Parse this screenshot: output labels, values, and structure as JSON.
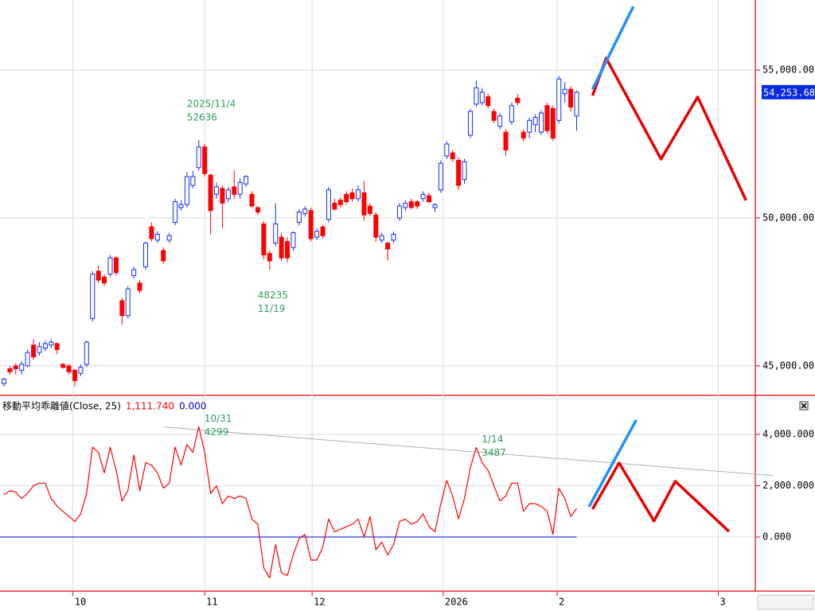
{
  "chart_data": [
    {
      "type": "candlestick",
      "x": [
        0,
        1,
        2,
        3,
        4,
        5,
        6,
        7,
        8,
        9,
        10,
        11,
        12,
        13,
        14,
        15,
        16,
        17,
        18,
        19,
        20,
        21,
        22,
        23,
        24,
        25,
        26,
        27,
        28,
        29,
        30,
        31,
        32,
        33,
        34,
        35,
        36,
        37,
        38,
        39,
        40,
        41,
        42,
        43,
        44,
        45,
        46,
        47,
        48,
        49,
        50,
        51,
        52,
        53,
        54,
        55,
        56,
        57,
        58,
        59,
        60,
        61,
        62,
        63,
        64,
        65,
        66,
        67,
        68,
        69,
        70,
        71,
        72,
        73,
        74,
        75,
        76,
        77,
        78,
        79,
        80,
        81,
        82,
        83,
        84,
        85,
        86,
        87,
        88,
        89,
        90,
        91,
        92,
        93,
        94,
        95,
        96,
        97
      ],
      "open": [
        44400,
        44900,
        45000,
        44850,
        45000,
        45700,
        45450,
        45600,
        45700,
        45750,
        45050,
        45000,
        44850,
        44750,
        45050,
        46600,
        48200,
        48000,
        48100,
        48650,
        47200,
        46700,
        48050,
        47800,
        48350,
        49700,
        49250,
        48900,
        49250,
        49850,
        50350,
        50450,
        51100,
        51700,
        52400,
        51450,
        50800,
        51000,
        50650,
        51050,
        50800,
        51150,
        50800,
        50350,
        49800,
        48800,
        49150,
        49350,
        49200,
        49000,
        49850,
        50150,
        50250,
        49350,
        49700,
        49950,
        50500,
        50600,
        50800,
        50850,
        50650,
        50850,
        50400,
        50100,
        49250,
        49150,
        49250,
        50000,
        50350,
        50550,
        50550,
        50650,
        50750,
        50350,
        50950,
        52100,
        52200,
        51950,
        51300,
        52800,
        53850,
        53900,
        54100,
        53600,
        53100,
        52900,
        53250,
        54050,
        52900,
        52900,
        53150,
        52900,
        53800,
        53700,
        53300,
        54200,
        54350,
        53450
      ],
      "high": [
        44600,
        45000,
        45100,
        45150,
        45550,
        45900,
        45800,
        45850,
        45900,
        45800,
        45100,
        45050,
        44900,
        45050,
        45850,
        48200,
        48400,
        48100,
        48750,
        48700,
        47300,
        47700,
        48350,
        47900,
        49200,
        49850,
        49550,
        49000,
        49500,
        50650,
        50600,
        51550,
        51600,
        52636,
        52500,
        51500,
        51200,
        51100,
        51050,
        51600,
        51350,
        51450,
        50900,
        50400,
        49900,
        48900,
        50500,
        49500,
        49350,
        49550,
        50300,
        50400,
        50350,
        49650,
        49750,
        51050,
        50650,
        50700,
        50900,
        51000,
        51100,
        51250,
        50500,
        50200,
        49500,
        49200,
        49550,
        50500,
        50600,
        50650,
        50600,
        50900,
        50850,
        50500,
        51950,
        52600,
        52300,
        52050,
        52000,
        53700,
        54650,
        54400,
        54200,
        53700,
        53550,
        53000,
        53900,
        54200,
        53000,
        53400,
        53500,
        53650,
        53900,
        53800,
        54800,
        54600,
        54450,
        54300
      ],
      "low": [
        44300,
        44700,
        44700,
        44700,
        44950,
        45200,
        45350,
        45500,
        45600,
        45400,
        44900,
        44700,
        44300,
        44650,
        44950,
        46500,
        47800,
        47700,
        48000,
        48050,
        46400,
        46600,
        47950,
        47450,
        48250,
        49200,
        49150,
        48450,
        49150,
        49750,
        50250,
        50350,
        51000,
        51600,
        51400,
        49450,
        50650,
        49650,
        50550,
        50650,
        50650,
        51050,
        50350,
        50100,
        48600,
        48235,
        49050,
        48550,
        48500,
        48900,
        49750,
        50050,
        49200,
        49250,
        49300,
        49850,
        50250,
        50350,
        50450,
        50550,
        50550,
        49900,
        50050,
        49200,
        49150,
        48550,
        49150,
        49900,
        50250,
        50300,
        50300,
        50550,
        50500,
        50200,
        50850,
        52000,
        51900,
        50950,
        51150,
        52700,
        53750,
        53800,
        53700,
        53200,
        53000,
        52100,
        53150,
        53800,
        52600,
        52700,
        52900,
        52800,
        52850,
        52600,
        53200,
        53900,
        53600,
        52950
      ],
      "close": [
        44550,
        44800,
        44900,
        45050,
        45450,
        45300,
        45650,
        45750,
        45800,
        45550,
        44950,
        44800,
        44500,
        44950,
        45800,
        48100,
        47900,
        47800,
        48650,
        48150,
        46700,
        47600,
        48250,
        47550,
        49150,
        49300,
        49450,
        48550,
        49400,
        50550,
        50450,
        51400,
        51400,
        52400,
        51500,
        50250,
        51050,
        50500,
        50950,
        50800,
        51200,
        51400,
        50400,
        50200,
        48750,
        48550,
        49800,
        48650,
        48650,
        49500,
        50200,
        50300,
        49300,
        49550,
        49400,
        50950,
        50300,
        50450,
        50550,
        50650,
        50950,
        50100,
        50150,
        49350,
        49400,
        48950,
        49450,
        50400,
        50500,
        50350,
        50400,
        50800,
        50550,
        50450,
        51850,
        52500,
        52000,
        51100,
        51900,
        53600,
        54400,
        54250,
        53800,
        53300,
        53450,
        52300,
        53800,
        53900,
        52700,
        53300,
        53400,
        53550,
        52950,
        52700,
        54700,
        54350,
        53750,
        54253.68
      ],
      "up_color": "#1030f0",
      "down_color": "#ff0000",
      "xlim": [
        -0.67,
        127.4
      ],
      "ylim": [
        44000,
        57370
      ],
      "yticks": [
        {
          "value": 45000,
          "label": "45,000.00"
        },
        {
          "value": 50000,
          "label": "50,000.00"
        },
        {
          "value": 55000,
          "label": "55,000.00"
        }
      ],
      "grid": true,
      "last_price": {
        "value": 54253.68,
        "label": "54,253.68",
        "color": "#0a2ae0"
      },
      "annotations": [
        {
          "label": "2025/11/4",
          "value": 52636,
          "x": 33,
          "position": "above"
        },
        {
          "label": "11/19",
          "value": 48235,
          "x": 45,
          "position": "below"
        }
      ],
      "annotation_color": "#2e9e5a",
      "forecast": [
        {
          "color": "#e80000",
          "x": [
            99.7,
            102,
            111.3,
            117.5,
            125.7
          ],
          "values": [
            54140,
            55400,
            51990,
            54090,
            50590
          ]
        },
        {
          "color": "#1e8fff",
          "x": [
            99.7,
            106.6
          ],
          "values": [
            54355,
            57150
          ]
        }
      ]
    },
    {
      "type": "line",
      "title": "移動平均乖離値(Close, 25)",
      "x": [
        0,
        1,
        2,
        3,
        4,
        5,
        6,
        7,
        8,
        9,
        10,
        11,
        12,
        13,
        14,
        15,
        16,
        17,
        18,
        19,
        20,
        21,
        22,
        23,
        24,
        25,
        26,
        27,
        28,
        29,
        30,
        31,
        32,
        33,
        34,
        35,
        36,
        37,
        38,
        39,
        40,
        41,
        42,
        43,
        44,
        45,
        46,
        47,
        48,
        49,
        50,
        51,
        52,
        53,
        54,
        55,
        56,
        57,
        58,
        59,
        60,
        61,
        62,
        63,
        64,
        65,
        66,
        67,
        68,
        69,
        70,
        71,
        72,
        73,
        74,
        75,
        76,
        77,
        78,
        79,
        80,
        81,
        82,
        83,
        84,
        85,
        86,
        87,
        88,
        89,
        90,
        91,
        92,
        93,
        94,
        95,
        96,
        97
      ],
      "series": [
        {
          "color": "#ff0000",
          "values": [
            1650,
            1800,
            1750,
            1500,
            1700,
            2000,
            2100,
            2100,
            1500,
            1200,
            1000,
            800,
            600,
            900,
            1700,
            3500,
            3300,
            2500,
            3500,
            2600,
            1400,
            1800,
            3200,
            1800,
            2900,
            2800,
            2500,
            1900,
            2100,
            3500,
            2800,
            3600,
            3300,
            4299,
            3300,
            1700,
            2000,
            1300,
            1600,
            1500,
            1600,
            1500,
            700,
            500,
            -1200,
            -1600,
            -300,
            -1400,
            -1500,
            -700,
            -50,
            100,
            -900,
            -900,
            -400,
            700,
            200,
            300,
            400,
            500,
            700,
            0,
            800,
            -500,
            -200,
            -700,
            -300,
            600,
            700,
            500,
            600,
            900,
            400,
            200,
            1300,
            2200,
            1600,
            700,
            1500,
            2700,
            3487,
            2900,
            2600,
            2000,
            1400,
            1600,
            2100,
            2100,
            1000,
            1300,
            1300,
            1200,
            1000,
            100,
            1900,
            1500,
            800,
            1111.74
          ]
        }
      ],
      "header_values": [
        {
          "value": 1111.74,
          "label": "1,111.740",
          "color": "#ff0000"
        },
        {
          "value": 0,
          "label": "0.000",
          "color": "#0000cc"
        }
      ],
      "annotations": [
        {
          "label": "10/31",
          "value": 4299,
          "x": 33
        },
        {
          "label": "1/14",
          "value": 3487,
          "x": 80
        }
      ],
      "annotation_color": "#2e9e5a",
      "trendline": {
        "color": "#b0b0b0",
        "x": [
          27.2,
          130.3
        ],
        "values": [
          4286,
          2391
        ]
      },
      "forecast": [
        {
          "color": "#e80000",
          "x": [
            99.7,
            104.2,
            110.1,
            113.7,
            122.8
          ],
          "values": [
            1087,
            2888,
            621,
            2174,
            217
          ]
        },
        {
          "color": "#1e8fff",
          "x": [
            99.1,
            107.1
          ],
          "values": [
            1180,
            4565
          ]
        }
      ],
      "xlim": [
        -0.67,
        127.4
      ],
      "ylim": [
        -2110,
        5520
      ],
      "yticks": [
        {
          "value": 0,
          "label": "0.000"
        },
        {
          "value": 2000,
          "label": "2,000.000"
        },
        {
          "value": 4000,
          "label": "4,000.000"
        }
      ],
      "xticks": [
        {
          "value": 11.7,
          "label": "10"
        },
        {
          "value": 34,
          "label": "11"
        },
        {
          "value": 52.2,
          "label": "12"
        },
        {
          "value": 74.4,
          "label": "2026"
        },
        {
          "value": 93.7,
          "label": "2"
        },
        {
          "value": 121,
          "label": "3"
        }
      ]
    }
  ]
}
